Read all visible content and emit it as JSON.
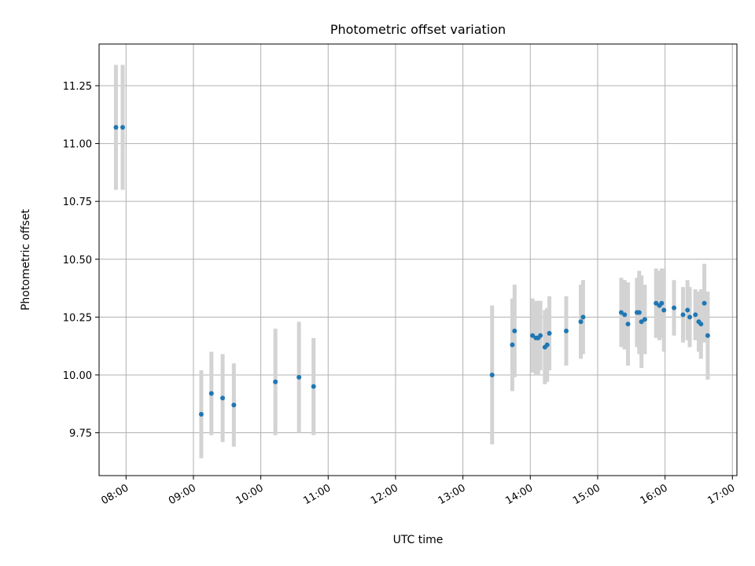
{
  "chart_data": {
    "type": "scatter",
    "title": "Photometric offset variation",
    "xlabel": "UTC time",
    "ylabel": "Photometric offset",
    "xlim": [
      "07:36",
      "17:04"
    ],
    "ylim": [
      9.565,
      11.43
    ],
    "grid": true,
    "x_ticks": [
      "08:00",
      "09:00",
      "10:00",
      "11:00",
      "12:00",
      "13:00",
      "14:00",
      "15:00",
      "16:00",
      "17:00"
    ],
    "y_ticks": [
      "9.75",
      "10.00",
      "10.25",
      "10.50",
      "10.75",
      "11.00",
      "11.25"
    ],
    "colors": {
      "point": "#1f77b4",
      "errorbar": "#d3d3d3",
      "grid": "#b0b0b0"
    },
    "series": [
      {
        "x": [
          "07:51",
          "07:57",
          "09:07",
          "09:16",
          "09:26",
          "09:36",
          "10:13",
          "10:34",
          "10:47",
          "13:26",
          "13:44",
          "13:46",
          "14:02",
          "14:05",
          "14:07",
          "14:09",
          "14:13",
          "14:15",
          "14:17",
          "14:32",
          "14:45",
          "14:47",
          "15:21",
          "15:24",
          "15:27",
          "15:35",
          "15:37",
          "15:39",
          "15:42",
          "15:52",
          "15:55",
          "15:57",
          "15:59",
          "16:08",
          "16:16",
          "16:20",
          "16:22",
          "16:27",
          "16:30",
          "16:32",
          "16:35",
          "16:38"
        ],
        "y": [
          11.07,
          11.07,
          9.83,
          9.92,
          9.9,
          9.87,
          9.97,
          9.99,
          9.95,
          10.0,
          10.13,
          10.19,
          10.17,
          10.16,
          10.16,
          10.17,
          10.12,
          10.13,
          10.18,
          10.19,
          10.23,
          10.25,
          10.27,
          10.26,
          10.22,
          10.27,
          10.27,
          10.23,
          10.24,
          10.31,
          10.3,
          10.31,
          10.28,
          10.29,
          10.26,
          10.28,
          10.25,
          10.26,
          10.23,
          10.22,
          10.31,
          10.17
        ],
        "yerr": [
          0.27,
          0.27,
          0.19,
          0.18,
          0.19,
          0.18,
          0.23,
          0.24,
          0.21,
          0.3,
          0.2,
          0.2,
          0.16,
          0.16,
          0.16,
          0.15,
          0.16,
          0.16,
          0.16,
          0.15,
          0.16,
          0.16,
          0.15,
          0.15,
          0.18,
          0.15,
          0.18,
          0.2,
          0.15,
          0.15,
          0.15,
          0.15,
          0.18,
          0.12,
          0.12,
          0.13,
          0.13,
          0.11,
          0.13,
          0.15,
          0.17,
          0.19
        ]
      }
    ]
  }
}
